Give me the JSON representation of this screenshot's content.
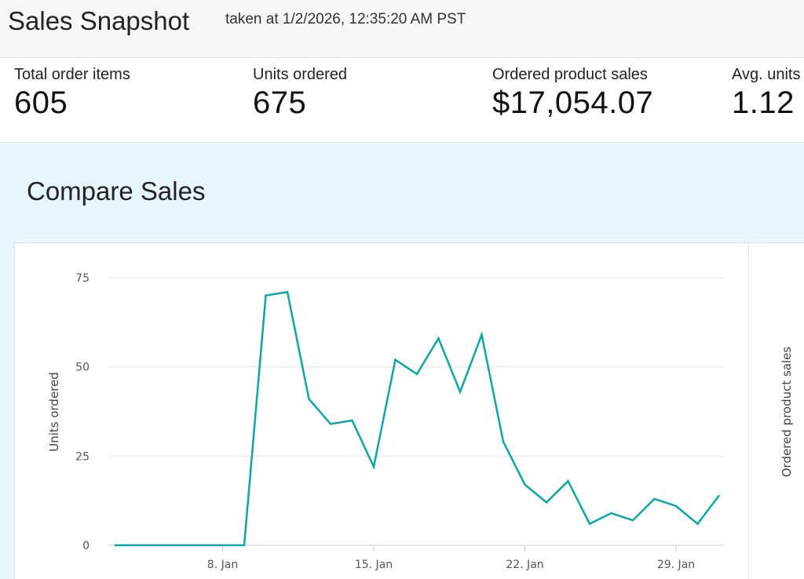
{
  "header": {
    "title": "Sales Snapshot",
    "taken": "taken at 1/2/2026, 12:35:20 AM PST"
  },
  "metrics": [
    {
      "label": "Total order items",
      "value": "605"
    },
    {
      "label": "Units ordered",
      "value": "675"
    },
    {
      "label": "Ordered product sales",
      "value": "$17,054.07"
    },
    {
      "label": "Avg. units",
      "value": "1.12"
    }
  ],
  "compare": {
    "heading": "Compare Sales"
  },
  "colors": {
    "line": "#0aa7a7",
    "section_bg": "#e6f6fe"
  },
  "chart_data": {
    "type": "line",
    "ylabel": "Units ordered",
    "ylabel_right": "Ordered product sales",
    "ylim": [
      0,
      75
    ],
    "yticks": [
      0,
      25,
      50,
      75
    ],
    "x_start_day": 3,
    "x_end_day": 31,
    "xticks": [
      {
        "day": 8,
        "label": "8. Jan"
      },
      {
        "day": 15,
        "label": "15. Jan"
      },
      {
        "day": 22,
        "label": "22. Jan"
      },
      {
        "day": 29,
        "label": "29. Jan"
      }
    ],
    "series": [
      {
        "days": [
          3,
          4,
          5,
          6,
          7,
          8,
          9,
          10,
          11,
          12,
          13,
          14,
          15,
          16,
          17,
          18,
          19,
          20,
          21,
          22,
          23,
          24,
          25,
          26,
          27,
          28,
          29,
          30,
          31
        ],
        "values": [
          0,
          0,
          0,
          0,
          0,
          0,
          0,
          70,
          71,
          41,
          34,
          35,
          22,
          52,
          48,
          58,
          43,
          59,
          29,
          17,
          12,
          18,
          6,
          9,
          7,
          13,
          11,
          6,
          14
        ]
      }
    ]
  }
}
